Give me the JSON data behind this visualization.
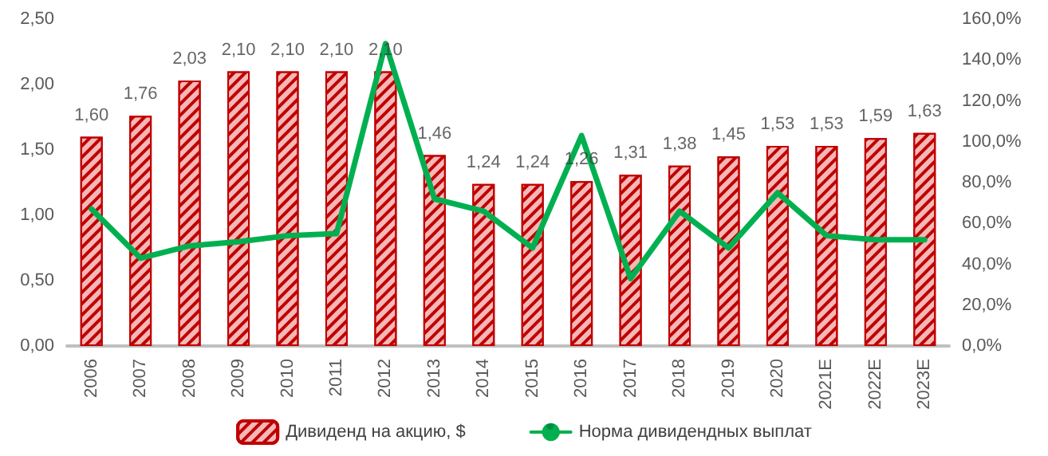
{
  "chart_data": {
    "type": "bar",
    "categories": [
      "2006",
      "2007",
      "2008",
      "2009",
      "2010",
      "2011",
      "2012",
      "2013",
      "2014",
      "2015",
      "2016",
      "2017",
      "2018",
      "2019",
      "2020",
      "2021E",
      "2022E",
      "2023E"
    ],
    "series": [
      {
        "name": "Дивиденд на акцию, $",
        "color": "#c00000",
        "values": [
          1.6,
          1.76,
          2.03,
          2.1,
          2.1,
          2.1,
          2.1,
          1.46,
          1.24,
          1.24,
          1.26,
          1.31,
          1.38,
          1.45,
          1.53,
          1.53,
          1.59,
          1.63
        ],
        "value_labels": [
          "1,60",
          "1,76",
          "2,03",
          "2,10",
          "2,10",
          "2,10",
          "2,10",
          "1,46",
          "1,24",
          "1,24",
          "1,26",
          "1,31",
          "1,38",
          "1,45",
          "1,53",
          "1,53",
          "1,59",
          "1,63"
        ]
      },
      {
        "name": "Норма дивидендных выплат",
        "type": "line",
        "axis": "y2",
        "color": "#00b050",
        "values": [
          67,
          43,
          49,
          51,
          54,
          55,
          148,
          72,
          66,
          48,
          103,
          33,
          66,
          48,
          75,
          54,
          52,
          52
        ]
      }
    ],
    "ylim": [
      0,
      2.5
    ],
    "yticks": [
      {
        "value": 0,
        "label": "0,00"
      },
      {
        "value": 0.5,
        "label": "0,50"
      },
      {
        "value": 1,
        "label": "1,00"
      },
      {
        "value": 1.5,
        "label": "1,50"
      },
      {
        "value": 2,
        "label": "2,00"
      },
      {
        "value": 2.5,
        "label": "2,50"
      }
    ],
    "y2lim": [
      0,
      160
    ],
    "y2ticks": [
      {
        "value": 0,
        "label": "0,0%"
      },
      {
        "value": 20,
        "label": "20,0%"
      },
      {
        "value": 40,
        "label": "40,0%"
      },
      {
        "value": 60,
        "label": "60,0%"
      },
      {
        "value": 80,
        "label": "80,0%"
      },
      {
        "value": 100,
        "label": "100,0%"
      },
      {
        "value": 120,
        "label": "120,0%"
      },
      {
        "value": 140,
        "label": "140,0%"
      },
      {
        "value": 160,
        "label": "160,0%"
      }
    ],
    "grid": false,
    "legend": "bottom",
    "marker": "none",
    "line_style": "solid"
  }
}
